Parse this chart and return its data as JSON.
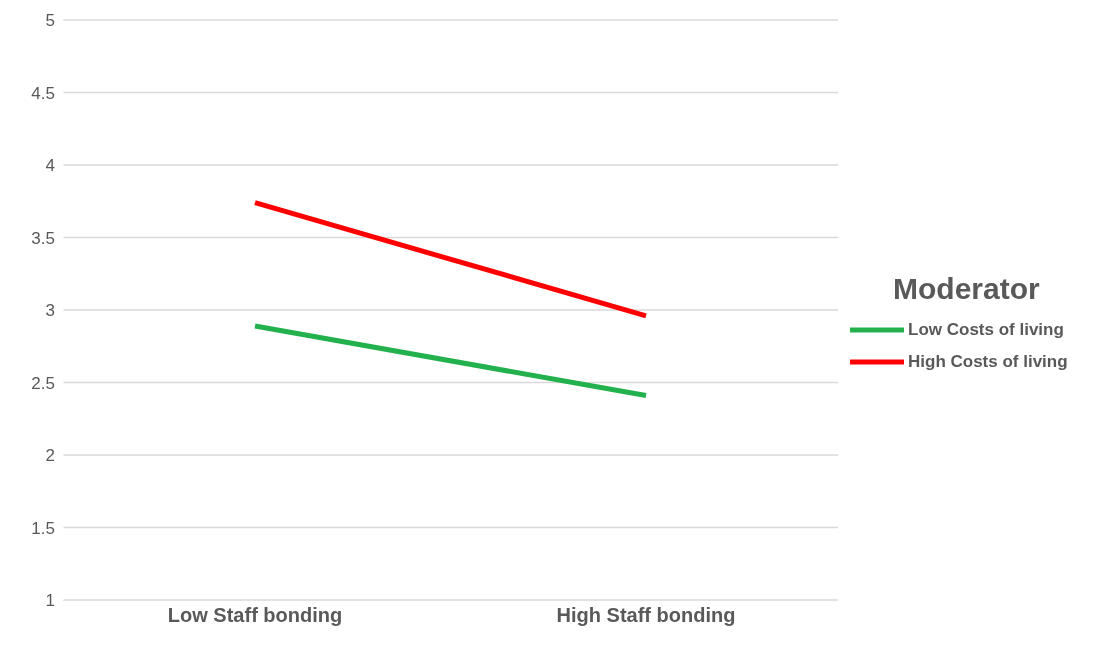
{
  "chart_data": {
    "type": "line",
    "categories": [
      "Low Staff bonding",
      "High Staff bonding"
    ],
    "series": [
      {
        "name": "Low Costs of living",
        "color": "#22b14c",
        "values": [
          2.89,
          2.41
        ]
      },
      {
        "name": "High Costs of living",
        "color": "#ff0000",
        "values": [
          3.74,
          2.96
        ]
      }
    ],
    "ylim": [
      1,
      5
    ],
    "yticks": [
      1,
      1.5,
      2,
      2.5,
      3,
      3.5,
      4,
      4.5,
      5
    ],
    "grid": "y",
    "legend": "right",
    "legend_title": "Moderator",
    "marker": "none",
    "line_style": "solid"
  }
}
